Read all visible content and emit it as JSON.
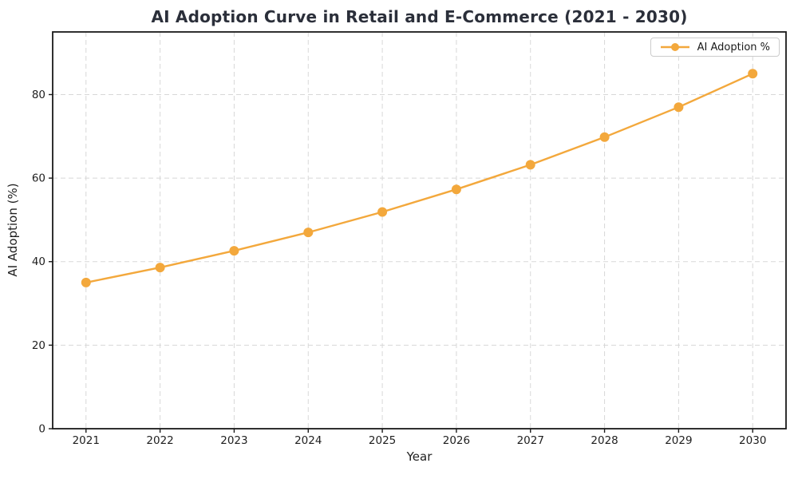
{
  "chart_data": {
    "type": "line",
    "title": "AI Adoption Curve in Retail and E-Commerce (2021 - 2030)",
    "xlabel": "Year",
    "ylabel": "AI Adoption (%)",
    "x": [
      2021,
      2022,
      2023,
      2024,
      2025,
      2026,
      2027,
      2028,
      2029,
      2030
    ],
    "series": [
      {
        "name": "AI Adoption %",
        "values": [
          35.0,
          38.6,
          42.6,
          47.0,
          51.9,
          57.3,
          63.2,
          69.8,
          77.0,
          85.0
        ],
        "marker": "circle"
      }
    ],
    "xticks": [
      2021,
      2022,
      2023,
      2024,
      2025,
      2026,
      2027,
      2028,
      2029,
      2030
    ],
    "yticks": [
      0,
      20,
      40,
      60,
      80
    ],
    "xlim": [
      2020.55,
      2030.45
    ],
    "ylim": [
      0,
      95
    ],
    "grid": true,
    "grid_style": "dashed",
    "legend": {
      "position": "upper-right",
      "entries": [
        "AI Adoption %"
      ]
    },
    "colors": {
      "line": "#F3A83C",
      "grid": "#D8D8D8",
      "spine": "#1a1a1a",
      "tick_label": "#1f1f1f",
      "title": "#2b2f3a"
    }
  }
}
